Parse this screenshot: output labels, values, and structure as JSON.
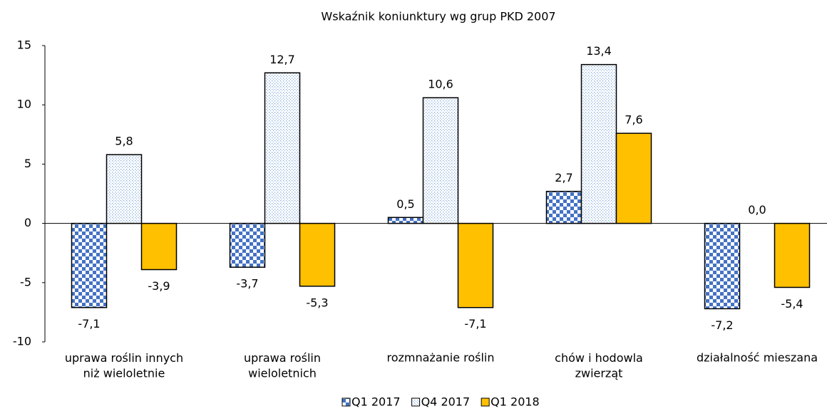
{
  "chart_data": {
    "type": "bar",
    "title": "Wskaźnik koniunktury wg grup PKD 2007",
    "categories": [
      "uprawa roślin innych\nniż wieloletnie",
      "uprawa roślin\nwieloletnich",
      "rozmnażanie roślin",
      "chów i hodowla\nzwierząt",
      "działalność mieszana"
    ],
    "series": [
      {
        "name": "Q1 2017",
        "color": "#4472c4",
        "pattern": "checker",
        "values": [
          -7.1,
          -3.7,
          0.5,
          2.7,
          -7.2
        ],
        "value_labels": [
          "-7,1",
          "-3,7",
          "0,5",
          "2,7",
          "-7,2"
        ]
      },
      {
        "name": "Q4 2017",
        "color": "#7fa8dc",
        "pattern": "dots",
        "values": [
          5.8,
          12.7,
          10.6,
          13.4,
          0.0
        ],
        "value_labels": [
          "5,8",
          "12,7",
          "10,6",
          "13,4",
          "0,0"
        ]
      },
      {
        "name": "Q1 2018",
        "color": "#ffc000",
        "pattern": "solid",
        "values": [
          -3.9,
          -5.3,
          -7.1,
          7.6,
          -5.4
        ],
        "value_labels": [
          "-3,9",
          "-5,3",
          "-7,1",
          "7,6",
          "-5,4"
        ]
      }
    ],
    "ylim": [
      -10,
      15
    ],
    "yticks": [
      -10,
      -5,
      0,
      5,
      10,
      15
    ],
    "grid": false
  }
}
